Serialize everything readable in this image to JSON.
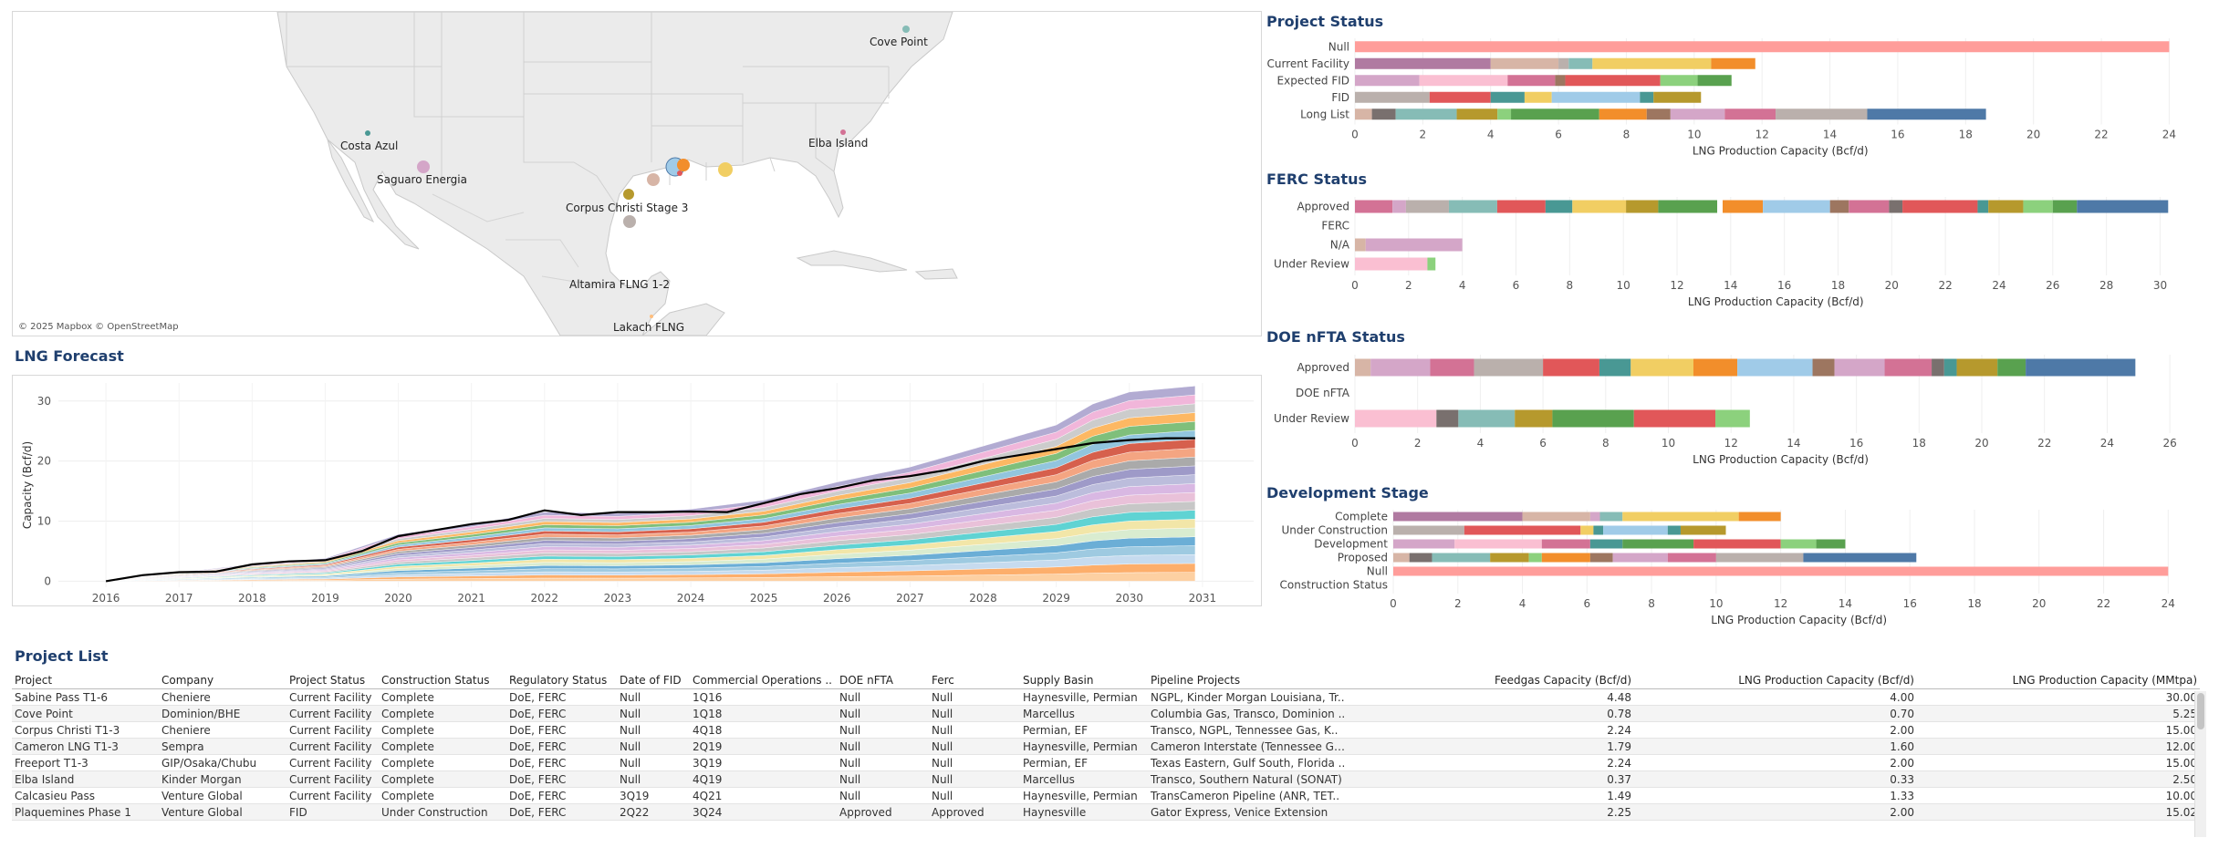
{
  "map": {
    "attribution": "© 2025 Mapbox © OpenStreetMap",
    "labels": [
      "Cove Point",
      "Costa Azul",
      "Elba Island",
      "Saguaro Energia",
      "Corpus Christi Stage 3",
      "Altamira FLNG 1-2",
      "Lakach FLNG"
    ]
  },
  "titles": {
    "lng_forecast": "LNG Forecast",
    "project_status": "Project Status",
    "ferc_status": "FERC Status",
    "doe_status": "DOE nFTA Status",
    "development_stage": "Development Stage",
    "project_list": "Project List"
  },
  "axis_labels": {
    "lng_capacity": "LNG Production Capacity (Bcf/d)",
    "capacity_bcfd": "Capacity (Bcf/d)"
  },
  "colors": {
    "accent_title": "#1f3f6e",
    "palette": [
      "#d4a6c8",
      "#b07aa1",
      "#bab0ac",
      "#86bcb6",
      "#e15759",
      "#499894",
      "#f1ce63",
      "#b6992d",
      "#59a14f",
      "#f28e2b",
      "#9d7660",
      "#a0cbe8",
      "#fabfd2",
      "#8cd17d",
      "#4e79a7",
      "#d37295",
      "#ff9d9a",
      "#79706e",
      "#d7b5a6",
      "#ffbe7d"
    ]
  },
  "chart_data": [
    {
      "type": "area",
      "title": "LNG Forecast",
      "ylabel": "Capacity (Bcf/d)",
      "xlabel": "",
      "ylim": [
        -1,
        33
      ],
      "yticks": [
        0,
        10,
        20,
        30
      ],
      "xlim": [
        2015.35,
        2031.7
      ],
      "xticks": [
        "2016",
        "2017",
        "2018",
        "2019",
        "2020",
        "2021",
        "2022",
        "2023",
        "2024",
        "2025",
        "2026",
        "2027",
        "2028",
        "2029",
        "2030",
        "2031"
      ],
      "total_line": [
        [
          2016,
          0
        ],
        [
          2016.5,
          1
        ],
        [
          2017,
          1.5
        ],
        [
          2017.5,
          1.6
        ],
        [
          2018,
          2.8
        ],
        [
          2018.5,
          3.3
        ],
        [
          2019,
          3.5
        ],
        [
          2019.5,
          5
        ],
        [
          2020,
          7.5
        ],
        [
          2020.5,
          8.5
        ],
        [
          2021,
          9.5
        ],
        [
          2021.5,
          10.2
        ],
        [
          2022,
          11.8
        ],
        [
          2022.5,
          11
        ],
        [
          2023,
          11.5
        ],
        [
          2023.5,
          11.5
        ],
        [
          2024,
          11.6
        ],
        [
          2024.5,
          11.5
        ],
        [
          2025,
          13
        ],
        [
          2025.5,
          14.5
        ],
        [
          2026,
          15.5
        ],
        [
          2026.5,
          16.8
        ],
        [
          2027,
          17.5
        ],
        [
          2027.5,
          18.5
        ],
        [
          2028,
          20
        ],
        [
          2028.5,
          21
        ],
        [
          2029,
          22
        ],
        [
          2029.5,
          23
        ],
        [
          2030,
          23.5
        ],
        [
          2030.5,
          23.8
        ],
        [
          2030.9,
          23.8
        ]
      ],
      "stacked_top": [
        [
          2016,
          0
        ],
        [
          2017,
          1.5
        ],
        [
          2018,
          2.8
        ],
        [
          2019,
          3.8
        ],
        [
          2020,
          7.8
        ],
        [
          2021,
          9.5
        ],
        [
          2022,
          11.5
        ],
        [
          2023,
          11.3
        ],
        [
          2024,
          12
        ],
        [
          2025,
          13.5
        ],
        [
          2026,
          16.5
        ],
        [
          2027,
          19
        ],
        [
          2028,
          22.5
        ],
        [
          2029,
          26
        ],
        [
          2029.5,
          29.5
        ],
        [
          2030,
          31.5
        ],
        [
          2030.9,
          32.5
        ]
      ],
      "grid": true
    },
    {
      "type": "bar",
      "title": "Project Status",
      "xlabel": "LNG Production Capacity (Bcf/d)",
      "xlim": [
        0,
        24.5
      ],
      "xticks": [
        0,
        2,
        4,
        6,
        8,
        10,
        12,
        14,
        16,
        18,
        20,
        22,
        24
      ],
      "categories": [
        "Null",
        "Current Facility",
        "Expected FID",
        "FID",
        "Long List"
      ],
      "segments": [
        [
          24.0
        ],
        [
          4.0,
          2.0,
          0.3,
          0.7,
          3.5,
          1.3
        ],
        [
          1.9,
          2.6,
          1.4,
          0.3,
          2.8,
          1.1,
          1.0
        ],
        [
          2.2,
          1.8,
          1.0,
          0.8,
          2.6,
          0.4,
          1.4
        ],
        [
          0.5,
          0.7,
          1.8,
          1.2,
          0.4,
          2.6,
          1.4,
          0.7,
          1.6,
          1.5,
          2.7,
          3.5
        ]
      ],
      "segment_colors": [
        [
          "#ff9d9a"
        ],
        [
          "#b07aa1",
          "#d7b5a6",
          "#bab0ac",
          "#86bcb6",
          "#f1ce63",
          "#f28e2b"
        ],
        [
          "#d4a6c8",
          "#fabfd2",
          "#d37295",
          "#9d7660",
          "#e15759",
          "#8cd17d",
          "#59a14f"
        ],
        [
          "#bab0ac",
          "#e15759",
          "#499894",
          "#f1ce63",
          "#a0cbe8",
          "#499894",
          "#b6992d"
        ],
        [
          "#d7b5a6",
          "#79706e",
          "#86bcb6",
          "#b6992d",
          "#8cd17d",
          "#59a14f",
          "#f28e2b",
          "#9d7660",
          "#d4a6c8",
          "#d37295",
          "#bab0ac",
          "#4e79a7"
        ]
      ],
      "grid": true
    },
    {
      "type": "bar",
      "title": "FERC Status",
      "xlabel": "LNG Production Capacity (Bcf/d)",
      "xlim": [
        0,
        30.8
      ],
      "xticks": [
        0,
        2,
        4,
        6,
        8,
        10,
        12,
        14,
        16,
        18,
        20,
        22,
        24,
        26,
        28,
        30
      ],
      "categories": [
        "Approved",
        "FERC",
        "N/A",
        "Under Review"
      ],
      "segments": [
        [
          1.4,
          0.5,
          1.6,
          1.8,
          1.8,
          1.0,
          2.0,
          1.2,
          2.2,
          0.2,
          1.5,
          2.5,
          0.7,
          1.5,
          0.5,
          2.8,
          0.4,
          1.3,
          1.1,
          0.9,
          3.4
        ],
        [],
        [
          0.4,
          3.6
        ],
        [
          2.7,
          0.3
        ]
      ],
      "segment_colors": [
        [
          "#d37295",
          "#d4a6c8",
          "#bab0ac",
          "#86bcb6",
          "#e15759",
          "#499894",
          "#f1ce63",
          "#b6992d",
          "#59a14f",
          "#ffffff",
          "#f28e2b",
          "#a0cbe8",
          "#9d7660",
          "#d37295",
          "#79706e",
          "#e15759",
          "#499894",
          "#b6992d",
          "#8cd17d",
          "#59a14f",
          "#4e79a7"
        ],
        [],
        [
          "#d7b5a6",
          "#d4a6c8"
        ],
        [
          "#fabfd2",
          "#8cd17d"
        ]
      ],
      "grid": true
    },
    {
      "type": "bar",
      "title": "DOE nFTA Status",
      "xlabel": "LNG Production Capacity (Bcf/d)",
      "xlim": [
        0,
        26.2
      ],
      "xticks": [
        0,
        2,
        4,
        6,
        8,
        10,
        12,
        14,
        16,
        18,
        20,
        22,
        24,
        26
      ],
      "categories": [
        "Approved",
        "DOE nFTA",
        "Under Review"
      ],
      "segments": [
        [
          0.5,
          1.9,
          1.4,
          2.2,
          1.8,
          1.0,
          2.0,
          1.4,
          2.4,
          0.7,
          1.6,
          1.5,
          0.4,
          0.4,
          1.3,
          0.9,
          3.5
        ],
        [],
        [
          2.6,
          0.7,
          1.8,
          1.2,
          2.6,
          2.6,
          1.1
        ]
      ],
      "segment_colors": [
        [
          "#d7b5a6",
          "#d4a6c8",
          "#d37295",
          "#bab0ac",
          "#e15759",
          "#499894",
          "#f1ce63",
          "#f28e2b",
          "#a0cbe8",
          "#9d7660",
          "#d4a6c8",
          "#d37295",
          "#79706e",
          "#499894",
          "#b6992d",
          "#59a14f",
          "#4e79a7"
        ],
        [],
        [
          "#fabfd2",
          "#79706e",
          "#86bcb6",
          "#b6992d",
          "#59a14f",
          "#e15759",
          "#8cd17d"
        ]
      ],
      "grid": true
    },
    {
      "type": "bar",
      "title": "Development Stage",
      "xlabel": "LNG Production Capacity (Bcf/d)",
      "xlim": [
        0,
        24.5
      ],
      "xticks": [
        0,
        2,
        4,
        6,
        8,
        10,
        12,
        14,
        16,
        18,
        20,
        22,
        24
      ],
      "categories": [
        "Complete",
        "Under Construction",
        "Development",
        "Proposed",
        "Null",
        "Construction Status"
      ],
      "segments": [
        [
          4.0,
          2.1,
          0.3,
          0.7,
          3.6,
          1.3
        ],
        [
          2.2,
          3.6,
          0.4,
          0.3,
          2.0,
          0.4,
          1.4
        ],
        [
          1.9,
          2.7,
          1.5,
          1.0,
          2.2,
          2.7,
          1.1,
          0.9
        ],
        [
          0.5,
          0.7,
          1.8,
          1.2,
          0.4,
          1.5,
          0.7,
          1.7,
          1.5,
          2.7,
          3.5
        ],
        [
          24.0
        ],
        []
      ],
      "segment_colors": [
        [
          "#b07aa1",
          "#d7b5a6",
          "#d4a6c8",
          "#86bcb6",
          "#f1ce63",
          "#f28e2b"
        ],
        [
          "#bab0ac",
          "#e15759",
          "#f1ce63",
          "#499894",
          "#a0cbe8",
          "#499894",
          "#b6992d"
        ],
        [
          "#d4a6c8",
          "#fabfd2",
          "#d37295",
          "#499894",
          "#59a14f",
          "#e15759",
          "#8cd17d",
          "#59a14f"
        ],
        [
          "#d7b5a6",
          "#79706e",
          "#86bcb6",
          "#b6992d",
          "#8cd17d",
          "#f28e2b",
          "#9d7660",
          "#d4a6c8",
          "#d37295",
          "#bab0ac",
          "#4e79a7"
        ],
        [
          "#ff9d9a"
        ],
        []
      ],
      "grid": true
    }
  ],
  "project_list": {
    "columns": [
      "Project",
      "Company",
      "Project Status",
      "Construction Status",
      "Regulatory Status",
      "Date of FID",
      "Commercial Operations ..",
      "DOE nFTA",
      "Ferc",
      "Supply Basin",
      "Pipeline Projects",
      "Feedgas Capacity (Bcf/d)",
      "LNG Production Capacity (Bcf/d)",
      "LNG Production Capacity (MMtpa)"
    ],
    "rows": [
      [
        "Sabine Pass T1-6",
        "Cheniere",
        "Current Facility",
        "Complete",
        "DoE, FERC",
        "Null",
        "1Q16",
        "Null",
        "Null",
        "Haynesville, Permian",
        "NGPL, Kinder Morgan Louisiana, Tr..",
        "4.48",
        "4.00",
        "30.00"
      ],
      [
        "Cove Point",
        "Dominion/BHE",
        "Current Facility",
        "Complete",
        "DoE, FERC",
        "Null",
        "1Q18",
        "Null",
        "Null",
        "Marcellus",
        "Columbia Gas, Transco, Dominion ..",
        "0.78",
        "0.70",
        "5.25"
      ],
      [
        "Corpus Christi T1-3",
        "Cheniere",
        "Current Facility",
        "Complete",
        "DoE, FERC",
        "Null",
        "4Q18",
        "Null",
        "Null",
        "Permian, EF",
        "Transco, NGPL, Tennessee Gas, K..",
        "2.24",
        "2.00",
        "15.00"
      ],
      [
        "Cameron LNG T1-3",
        "Sempra",
        "Current Facility",
        "Complete",
        "DoE, FERC",
        "Null",
        "2Q19",
        "Null",
        "Null",
        "Haynesville, Permian",
        "Cameron Interstate (Tennessee Ga..",
        "1.79",
        "1.60",
        "12.00"
      ],
      [
        "Freeport T1-3",
        "GIP/Osaka/Chubu",
        "Current Facility",
        "Complete",
        "DoE, FERC",
        "Null",
        "3Q19",
        "Null",
        "Null",
        "Permian, EF",
        "Texas Eastern, Gulf South, Florida ..",
        "2.24",
        "2.00",
        "15.00"
      ],
      [
        "Elba Island",
        "Kinder Morgan",
        "Current Facility",
        "Complete",
        "DoE, FERC",
        "Null",
        "4Q19",
        "Null",
        "Null",
        "Marcellus",
        "Transco, Southern Natural (SONAT)",
        "0.37",
        "0.33",
        "2.50"
      ],
      [
        "Calcasieu Pass",
        "Venture Global",
        "Current Facility",
        "Complete",
        "DoE, FERC",
        "3Q19",
        "4Q21",
        "Null",
        "Null",
        "Haynesville, Permian",
        "TransCameron Pipeline (ANR, TET..",
        "1.49",
        "1.33",
        "10.00"
      ],
      [
        "Plaquemines Phase 1",
        "Venture Global",
        "FID",
        "Under Construction",
        "DoE, FERC",
        "2Q22",
        "3Q24",
        "Approved",
        "Approved",
        "Haynesville",
        "Gator Express, Venice Extension",
        "2.25",
        "2.00",
        "15.02"
      ]
    ]
  }
}
